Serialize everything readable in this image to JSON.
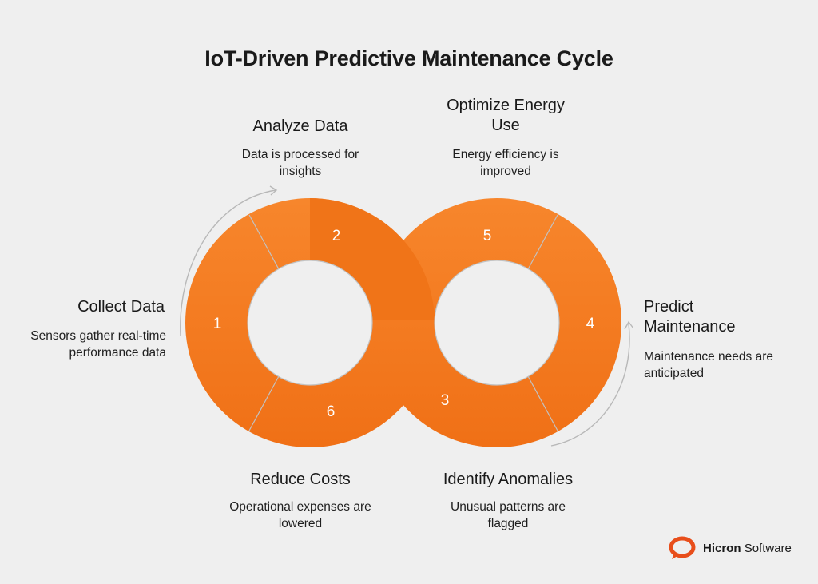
{
  "title": "IoT-Driven Predictive Maintenance Cycle",
  "steps": [
    {
      "number": "1",
      "title": "Collect Data",
      "description": "Sensors gather real-time performance data"
    },
    {
      "number": "2",
      "title": "Analyze Data",
      "description": "Data is processed for insights"
    },
    {
      "number": "3",
      "title": "Identify Anomalies",
      "description": "Unusual patterns are flagged"
    },
    {
      "number": "4",
      "title": "Predict Maintenance",
      "description": "Maintenance needs are anticipated"
    },
    {
      "number": "5",
      "title": "Optimize Energy Use",
      "description": "Energy efficiency is improved"
    },
    {
      "number": "6",
      "title": "Reduce Costs",
      "description": "Operational expenses are lowered"
    }
  ],
  "colors": {
    "ring": "#f4791f",
    "ring_dark": "#e8670f",
    "divider": "#c9c9c9",
    "arrow": "#b5b5b5",
    "logo": "#e84e1b"
  },
  "logo": {
    "brand_bold": "Hicron",
    "brand_regular": "Software",
    "icon": "speech-bubble-logo-icon"
  }
}
